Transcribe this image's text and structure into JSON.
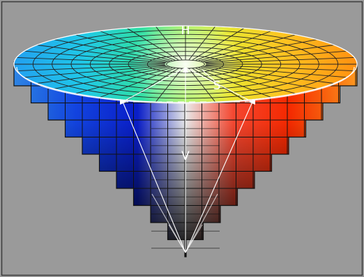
{
  "labels": {
    "hue": "H",
    "saturation": "S",
    "value": "V"
  },
  "colors": {
    "background": "#9a9a9a",
    "frame": "#3a3a3a",
    "grid_line": "#111111",
    "highlight_line": "#ffffff",
    "left_face": "#1030e0",
    "right_face": "#ff2000",
    "apex": "#000000"
  }
}
